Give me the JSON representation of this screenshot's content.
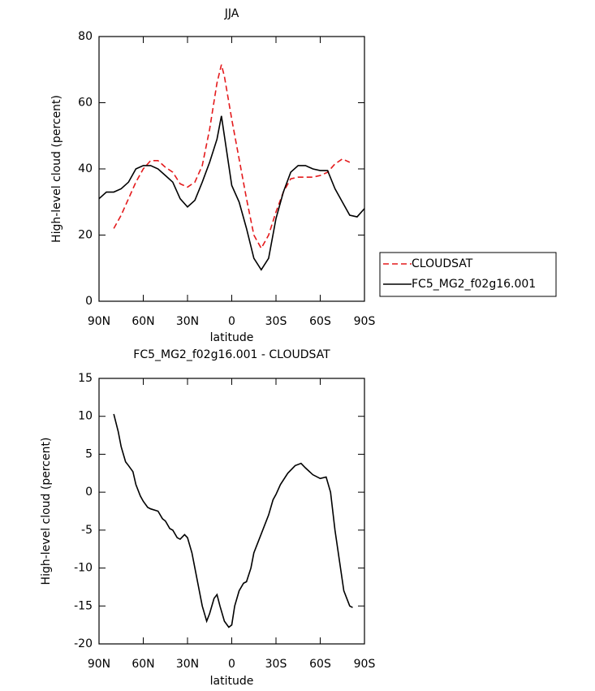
{
  "chart_data": [
    {
      "type": "line",
      "title": "JJA",
      "xlabel": "latitude",
      "ylabel": "High-level cloud (percent)",
      "x": [
        90,
        85,
        80,
        75,
        70,
        65,
        60,
        55,
        50,
        45,
        40,
        35,
        30,
        25,
        20,
        15,
        10,
        7,
        5,
        0,
        -5,
        -10,
        -15,
        -20,
        -25,
        -30,
        -35,
        -40,
        -45,
        -50,
        -55,
        -60,
        -65,
        -70,
        -75,
        -80,
        -85,
        -90
      ],
      "xlim": [
        90,
        -90
      ],
      "xticks": [
        {
          "value": 90,
          "label": "90N"
        },
        {
          "value": 60,
          "label": "60N"
        },
        {
          "value": 30,
          "label": "30N"
        },
        0,
        {
          "value": -30,
          "label": "30S"
        },
        {
          "value": -60,
          "label": "60S"
        },
        {
          "value": -90,
          "label": "90S"
        }
      ],
      "ylim": [
        0,
        80
      ],
      "yticks": [
        0,
        20,
        40,
        60,
        80
      ],
      "legend": "right",
      "series": [
        {
          "name": "CLOUDSAT",
          "color": "#e41a1c",
          "line_style": "dashed",
          "values": [
            null,
            null,
            22,
            26,
            31,
            36,
            40,
            42.5,
            42.5,
            40.5,
            39,
            35.5,
            34.5,
            36,
            41,
            52,
            66,
            71.5,
            68,
            55,
            43,
            31,
            20,
            16,
            20,
            27,
            33,
            37,
            37.5,
            37.5,
            37.5,
            38,
            39,
            41.5,
            43,
            42,
            null,
            null
          ]
        },
        {
          "name": "FC5_MG2_f02g16.001",
          "color": "#000000",
          "line_style": "solid",
          "values": [
            31,
            33,
            33,
            34,
            36,
            40,
            41,
            41,
            40,
            38,
            36,
            31,
            28.5,
            30.5,
            36,
            42,
            49,
            56,
            50,
            35,
            30,
            22,
            13,
            9.5,
            13,
            25,
            33,
            39,
            41,
            41,
            40,
            39.5,
            39.5,
            34,
            30,
            26,
            25.5,
            28
          ]
        }
      ]
    },
    {
      "type": "line",
      "title": "FC5_MG2_f02g16.001 - CLOUDSAT",
      "xlabel": "latitude",
      "ylabel": "High-level cloud (percent)",
      "x": [
        80,
        77,
        75,
        72,
        70,
        67,
        65,
        62,
        60,
        57,
        55,
        50,
        47,
        45,
        42,
        40,
        37,
        35,
        32,
        30,
        27,
        25,
        22,
        20,
        17,
        15,
        12,
        10,
        8,
        5,
        2,
        0,
        -2,
        -5,
        -8,
        -10,
        -13,
        -15,
        -20,
        -25,
        -28,
        -30,
        -33,
        -38,
        -43,
        -47,
        -50,
        -55,
        -60,
        -64,
        -67,
        -70,
        -73,
        -76,
        -80,
        -82
      ],
      "xlim": [
        90,
        -90
      ],
      "xticks": [
        {
          "value": 90,
          "label": "90N"
        },
        {
          "value": 60,
          "label": "60N"
        },
        {
          "value": 30,
          "label": "30N"
        },
        0,
        {
          "value": -30,
          "label": "30S"
        },
        {
          "value": -60,
          "label": "60S"
        },
        {
          "value": -90,
          "label": "90S"
        }
      ],
      "ylim": [
        -20,
        15
      ],
      "yticks": [
        -20,
        -15,
        -10,
        -5,
        0,
        5,
        10,
        15
      ],
      "color": "#000000",
      "values": [
        10.3,
        8,
        6,
        4,
        3.5,
        2.7,
        1,
        -0.5,
        -1.2,
        -2,
        -2.2,
        -2.5,
        -3.5,
        -3.8,
        -4.8,
        -5,
        -6,
        -6.2,
        -5.6,
        -6,
        -8,
        -10,
        -13,
        -15,
        -17,
        -16,
        -14,
        -13.5,
        -15,
        -17,
        -17.8,
        -17.5,
        -15,
        -13,
        -12,
        -11.8,
        -10,
        -8,
        -5.5,
        -3,
        -1,
        -0.3,
        1,
        2.5,
        3.5,
        3.8,
        3.2,
        2.3,
        1.8,
        2,
        0,
        -5,
        -9,
        -13,
        -15,
        -15.2
      ]
    }
  ]
}
